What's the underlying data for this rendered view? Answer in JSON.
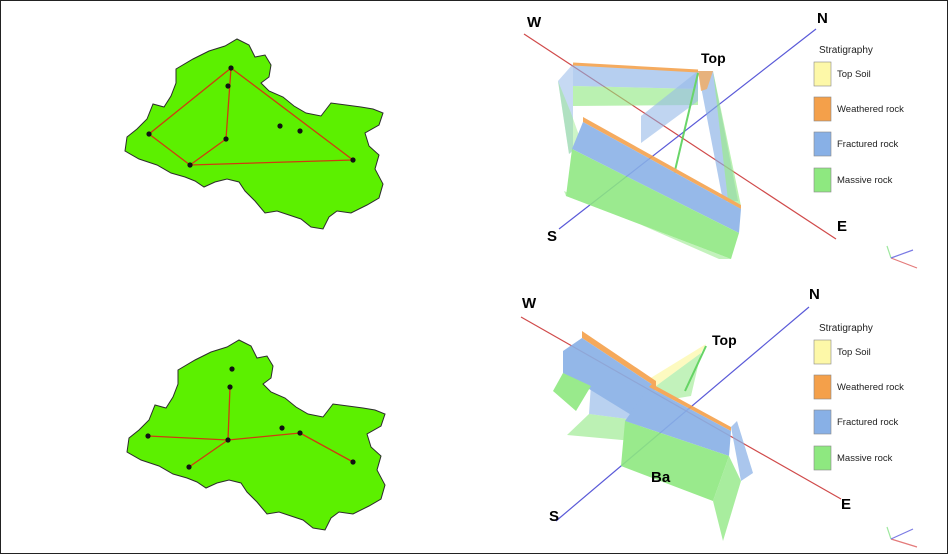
{
  "colors": {
    "region_fill": "#5cf000",
    "region_stroke": "#2c2c2c",
    "link_line": "#d03a10",
    "axis_we": "#d04a4a",
    "axis_sn": "#5a5ad8",
    "top_soil": "#fdf8a8",
    "weathered_rock": "#f4a04a",
    "fractured_rock": "#88b0e6",
    "massive_rock": "#8ee880"
  },
  "panels": [
    {
      "compass": {
        "w": "W",
        "n": "N",
        "s": "S",
        "e": "E",
        "top": "Top"
      },
      "legend": {
        "title": "Stratigraphy",
        "items": [
          {
            "label": "Top Soil",
            "color_key": "top_soil"
          },
          {
            "label": "Weathered rock",
            "color_key": "weathered_rock"
          },
          {
            "label": "Fractured rock",
            "color_key": "fractured_rock"
          },
          {
            "label": "Massive rock",
            "color_key": "massive_rock"
          }
        ]
      }
    },
    {
      "compass": {
        "w": "W",
        "n": "N",
        "s": "S",
        "e": "E",
        "top": "Top",
        "base": "Ba"
      },
      "legend": {
        "title": "Stratigraphy",
        "items": [
          {
            "label": "Top Soil",
            "color_key": "top_soil"
          },
          {
            "label": "Weathered rock",
            "color_key": "weathered_rock"
          },
          {
            "label": "Fractured rock",
            "color_key": "fractured_rock"
          },
          {
            "label": "Massive rock",
            "color_key": "massive_rock"
          }
        ]
      }
    }
  ]
}
